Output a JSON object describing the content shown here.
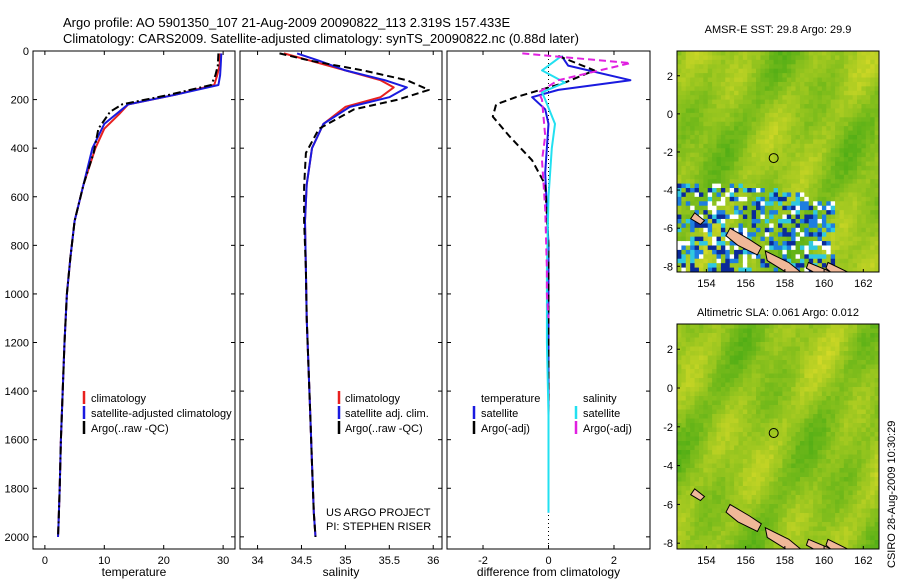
{
  "header": {
    "line1": "Argo profile: AO 5901350_107 21-Aug-2009 20090822_113 2.319S 157.433E",
    "line2": "Climatology: CARS2009. Satellite-adjusted climatology: synTS_20090822.nc (0.88d later)"
  },
  "side_text": "CSIRO 28-Aug-2009 10:30:29",
  "credit": {
    "line1": "US ARGO PROJECT",
    "line2": "PI: STEPHEN RISER"
  },
  "colors": {
    "climatology": "#e8201f",
    "satellite": "#1a1adf",
    "argo": "#000000",
    "cyan": "#22e0f0",
    "magenta": "#e020e0"
  },
  "chart_data": [
    {
      "type": "line",
      "xlabel": "temperature",
      "ylabel": "",
      "xlim": [
        -2,
        32
      ],
      "ylim": [
        2050,
        0
      ],
      "xticks": [
        0,
        10,
        20,
        30
      ],
      "yticks": [
        0,
        200,
        400,
        600,
        800,
        1000,
        1200,
        1400,
        1600,
        1800,
        2000
      ],
      "legend": [
        "climatology",
        "satellite-adjusted climatology",
        "Argo(..raw -QC)"
      ],
      "series": [
        {
          "name": "climatology",
          "style": "solid-red",
          "x": [
            29.5,
            29.4,
            29.0,
            28.5,
            22,
            14,
            12.5,
            10,
            8.5,
            6.5,
            5,
            4.3,
            3.7,
            3.3,
            3.0,
            2.7,
            2.5,
            2.3,
            2.2
          ],
          "y": [
            10,
            60,
            100,
            140,
            180,
            220,
            260,
            320,
            400,
            550,
            700,
            850,
            1000,
            1200,
            1400,
            1600,
            1800,
            1950,
            2000
          ]
        },
        {
          "name": "satellite-adjusted climatology",
          "style": "solid-blue",
          "x": [
            29.7,
            29.6,
            29.5,
            29.2,
            22,
            14,
            13,
            10,
            8,
            6.5,
            5,
            4.3,
            3.7,
            3.3,
            3.0,
            2.7,
            2.5,
            2.3,
            2.2
          ],
          "y": [
            10,
            60,
            100,
            140,
            180,
            220,
            240,
            300,
            400,
            550,
            700,
            850,
            1000,
            1200,
            1400,
            1600,
            1800,
            1950,
            2000
          ]
        },
        {
          "name": "Argo(..raw -QC)",
          "style": "dashdot-black",
          "x": [
            29.2,
            29.1,
            28.7,
            28,
            21,
            13,
            11,
            9,
            8.2,
            6.5,
            5,
            4.3,
            3.7,
            3.3,
            3.0,
            2.7,
            2.5,
            2.3,
            2.2
          ],
          "y": [
            10,
            60,
            100,
            140,
            180,
            220,
            250,
            320,
            420,
            550,
            700,
            850,
            1000,
            1200,
            1400,
            1600,
            1800,
            1950,
            2000
          ]
        }
      ]
    },
    {
      "type": "line",
      "xlabel": "salinity",
      "xlim": [
        33.8,
        36.1
      ],
      "ylim": [
        2050,
        0
      ],
      "xticks": [
        34,
        34.5,
        35,
        35.5,
        36
      ],
      "legend": [
        "climatology",
        "satellite adj. clim.",
        "Argo(..raw -QC)"
      ],
      "series": [
        {
          "name": "climatology",
          "style": "solid-red",
          "x": [
            34.3,
            34.6,
            35.0,
            35.4,
            35.55,
            35.4,
            35.0,
            34.75,
            34.62,
            34.56,
            34.54,
            34.55,
            34.56,
            34.58,
            34.6,
            34.62,
            34.64,
            34.66
          ],
          "y": [
            10,
            40,
            80,
            120,
            150,
            190,
            230,
            300,
            400,
            550,
            700,
            900,
            1100,
            1300,
            1500,
            1700,
            1900,
            2000
          ]
        },
        {
          "name": "satellite adj. clim.",
          "style": "solid-blue",
          "x": [
            34.45,
            34.7,
            35.0,
            35.45,
            35.7,
            35.5,
            35.05,
            34.75,
            34.62,
            34.56,
            34.54,
            34.55,
            34.56,
            34.58,
            34.6,
            34.62,
            34.64,
            34.66
          ],
          "y": [
            10,
            40,
            80,
            120,
            150,
            190,
            230,
            300,
            400,
            550,
            700,
            900,
            1100,
            1300,
            1500,
            1700,
            1900,
            2000
          ]
        },
        {
          "name": "Argo(..raw -QC)",
          "style": "dashed-black",
          "x": [
            34.25,
            34.6,
            35.2,
            35.7,
            35.95,
            35.6,
            35.1,
            34.7,
            34.55,
            34.53,
            34.53,
            34.55,
            34.56,
            34.58,
            34.6,
            34.62,
            34.64,
            34.66
          ],
          "y": [
            10,
            40,
            80,
            120,
            160,
            200,
            240,
            320,
            420,
            560,
            700,
            900,
            1100,
            1300,
            1500,
            1700,
            1900,
            2000
          ]
        }
      ]
    },
    {
      "type": "line",
      "xlabel": "difference from climatology",
      "xlim": [
        -3.1,
        3.1
      ],
      "ylim": [
        2050,
        0
      ],
      "xticks": [
        -2,
        0,
        2
      ],
      "legend_temperature": [
        "satellite",
        "Argo(-adj)"
      ],
      "legend_salinity": [
        "satellite",
        "Argo(-adj)"
      ],
      "legend_headers": [
        "temperature",
        "salinity"
      ],
      "series": [
        {
          "name": "temperature satellite",
          "style": "solid-blue",
          "x": [
            0.4,
            0.6,
            2.5,
            0.3,
            -0.5,
            -0.1,
            0.0,
            -0.1,
            0.0,
            0.0,
            0.0,
            0.0,
            0.0
          ],
          "y": [
            20,
            60,
            120,
            160,
            190,
            240,
            300,
            500,
            800,
            1100,
            1400,
            1700,
            1900
          ]
        },
        {
          "name": "temperature Argo(-adj)",
          "style": "dashed-black",
          "x": [
            0.3,
            1.4,
            0.5,
            -1.0,
            -1.6,
            -1.7,
            -1.2,
            -0.5,
            -0.1,
            0.0,
            0.0,
            0.0,
            0.0
          ],
          "y": [
            20,
            80,
            130,
            190,
            220,
            270,
            350,
            450,
            550,
            800,
            1100,
            1400,
            1700
          ]
        },
        {
          "name": "salinity satellite",
          "style": "solid-cyan",
          "x": [
            0.4,
            -0.2,
            0.5,
            -0.2,
            -0.1,
            0.2,
            0.1,
            0.0,
            -0.05,
            -0.05,
            0.0,
            0.0,
            0.0
          ],
          "y": [
            20,
            80,
            130,
            170,
            200,
            300,
            400,
            600,
            900,
            1200,
            1500,
            1700,
            1900
          ]
        },
        {
          "name": "salinity Argo(-adj)",
          "style": "dashed-magenta",
          "x": [
            -0.8,
            2.5,
            0.3,
            -0.3,
            -0.2,
            -0.1,
            -0.2,
            -0.1,
            -0.05,
            -0.05,
            0.0
          ],
          "y": [
            10,
            50,
            120,
            170,
            200,
            350,
            450,
            650,
            900,
            1000,
            1100
          ]
        }
      ]
    },
    {
      "type": "heatmap",
      "title": "AMSR-E SST: 29.8 Argo: 29.9",
      "xlim": [
        152.5,
        162.8
      ],
      "ylim": [
        -8.3,
        3.3
      ],
      "xticks": [
        154,
        156,
        158,
        160,
        162
      ],
      "yticks": [
        -8,
        -6,
        -4,
        -2,
        0,
        2
      ],
      "marker": {
        "x": 157.43,
        "y": -2.32
      }
    },
    {
      "type": "heatmap",
      "title": "Altimetric SLA: 0.061 Argo: 0.012",
      "xlim": [
        152.5,
        162.8
      ],
      "ylim": [
        -8.3,
        3.3
      ],
      "xticks": [
        154,
        156,
        158,
        160,
        162
      ],
      "yticks": [
        -8,
        -6,
        -4,
        -2,
        0,
        2
      ],
      "marker": {
        "x": 157.43,
        "y": -2.32
      }
    }
  ]
}
